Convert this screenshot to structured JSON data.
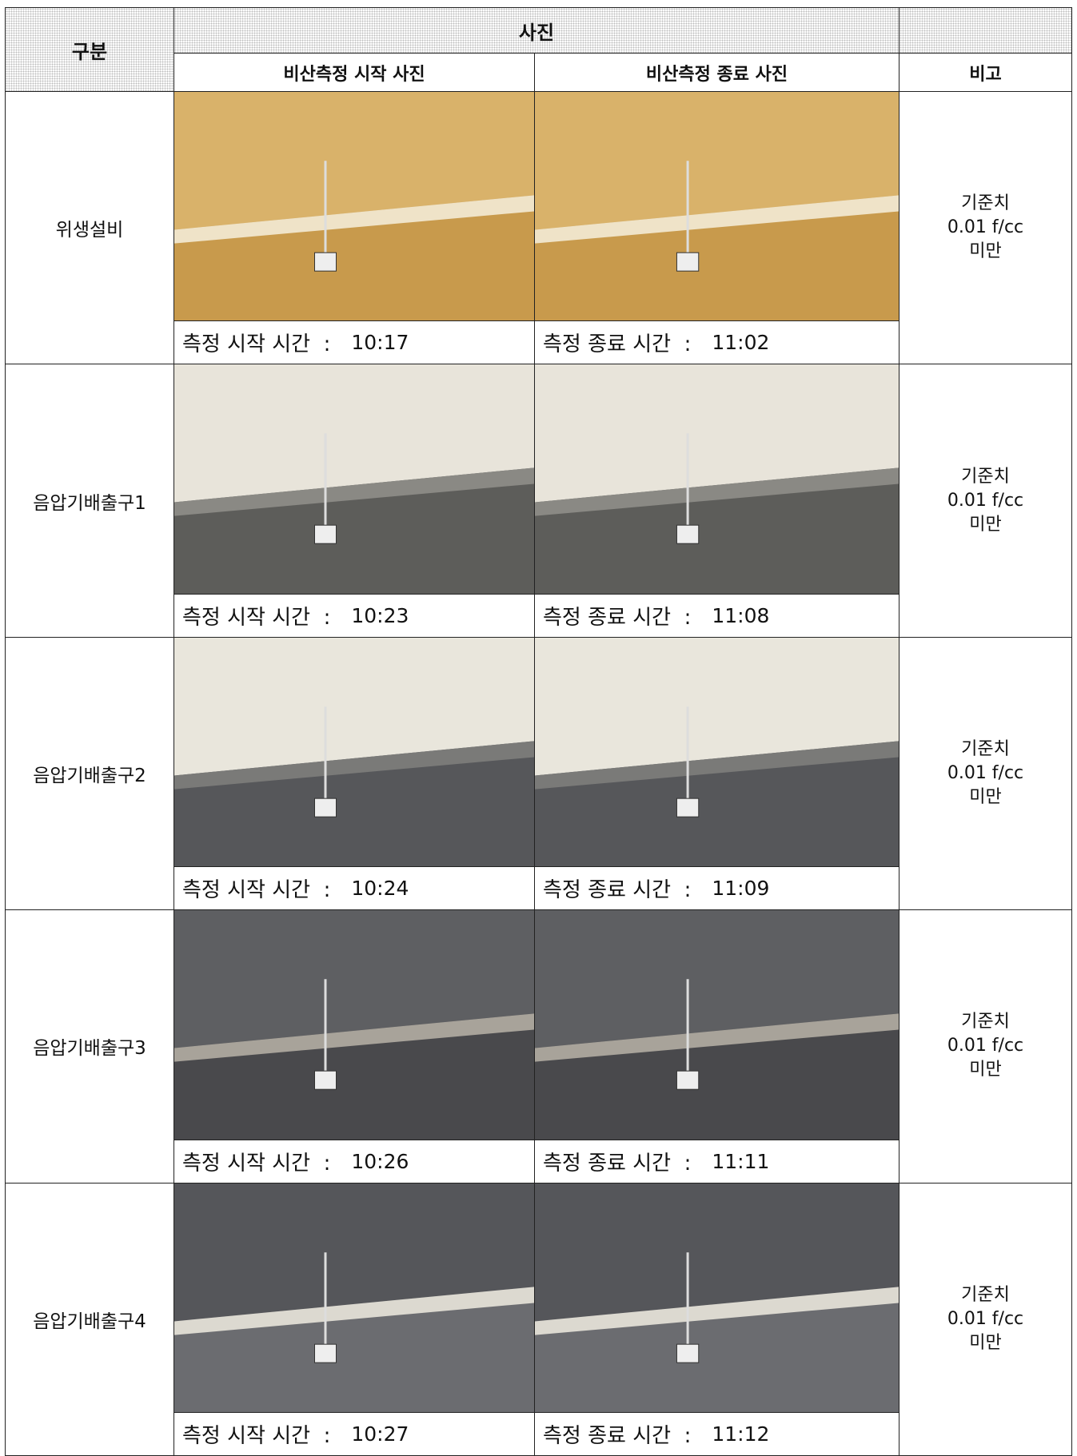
{
  "table": {
    "header": {
      "category": "구분",
      "photos": "사진",
      "start": "비산측정 시작 사진",
      "end": "비산측정 종료 사진",
      "remark": "비고"
    },
    "rows": [
      {
        "label": "위생설비",
        "start": {
          "label": "측정 시작 시간  :",
          "time": "10:17"
        },
        "end": {
          "label": "측정 종료 시간  :",
          "time": "11:02"
        },
        "note": [
          "기준치",
          "0.01 f/cc",
          "미만"
        ]
      },
      {
        "label": "음압기배출구1",
        "start": {
          "label": "측정 시작 시간  :",
          "time": "10:23"
        },
        "end": {
          "label": "측정 종료 시간  :",
          "time": "11:08"
        },
        "note": [
          "기준치",
          "0.01 f/cc",
          "미만"
        ]
      },
      {
        "label": "음압기배출구2",
        "start": {
          "label": "측정 시작 시간  :",
          "time": "10:24"
        },
        "end": {
          "label": "측정 종료 시간  :",
          "time": "11:09"
        },
        "note": [
          "기준치",
          "0.01 f/cc",
          "미만"
        ]
      },
      {
        "label": "음압기배출구3",
        "start": {
          "label": "측정 시작 시간  :",
          "time": "10:26"
        },
        "end": {
          "label": "측정 종료 시간  :",
          "time": "11:11"
        },
        "note": [
          "기준치",
          "0.01 f/cc",
          "미만"
        ]
      },
      {
        "label": "음압기배출구4",
        "start": {
          "label": "측정 시작 시간  :",
          "time": "10:27"
        },
        "end": {
          "label": "측정 종료 시간  :",
          "time": "11:12"
        },
        "note": [
          "기준치",
          "0.01 f/cc",
          "미만"
        ]
      }
    ]
  }
}
